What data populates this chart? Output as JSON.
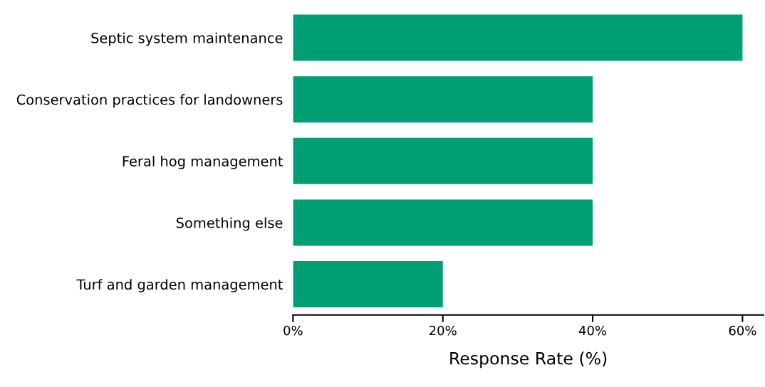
{
  "chart_data": {
    "type": "bar",
    "orientation": "horizontal",
    "xlabel": "Response Rate (%)",
    "categories": [
      "Septic system maintenance",
      "Conservation practices for landowners",
      "Feral hog management",
      "Something else",
      "Turf and garden management"
    ],
    "values": [
      60,
      40,
      40,
      40,
      20
    ],
    "color": "#009e73",
    "xlim": [
      0,
      62.8
    ],
    "xticks": [
      {
        "value": 0,
        "label": "0%"
      },
      {
        "value": 20,
        "label": "20%"
      },
      {
        "value": 40,
        "label": "40%"
      },
      {
        "value": 60,
        "label": "60%"
      }
    ],
    "grid": false,
    "legend": false
  }
}
